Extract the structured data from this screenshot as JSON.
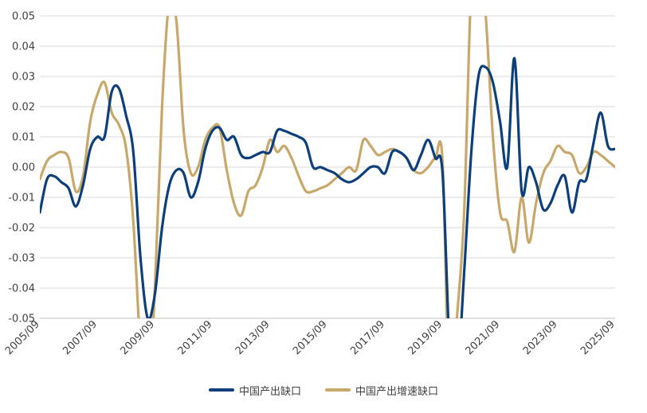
{
  "chart_data": {
    "type": "line",
    "title": "",
    "xlabel": "",
    "ylabel": "",
    "ylim": [
      -0.05,
      0.05
    ],
    "y_ticks": [
      "0.05",
      "0.04",
      "0.03",
      "0.02",
      "0.01",
      "0.00",
      "-0.01",
      "-0.02",
      "-0.03",
      "-0.04",
      "-0.05"
    ],
    "x_ticks": [
      "2005/09",
      "2007/09",
      "2009/09",
      "2011/09",
      "2013/09",
      "2015/09",
      "2017/09",
      "2019/09",
      "2021/09",
      "2023/09",
      "2025/09"
    ],
    "x_start": "2005/09",
    "x_end": "2025/09",
    "grid": true,
    "legend_position": "bottom",
    "series": [
      {
        "name": "中国产出缺口",
        "color": "#0d3f7a",
        "points": [
          [
            "2005/09",
            -0.015
          ],
          [
            "2005/12",
            -0.004
          ],
          [
            "2006/03",
            -0.003
          ],
          [
            "2006/06",
            -0.005
          ],
          [
            "2006/09",
            -0.007
          ],
          [
            "2006/12",
            -0.013
          ],
          [
            "2007/03",
            -0.006
          ],
          [
            "2007/06",
            0.006
          ],
          [
            "2007/09",
            0.01
          ],
          [
            "2007/12",
            0.01
          ],
          [
            "2008/03",
            0.025
          ],
          [
            "2008/06",
            0.026
          ],
          [
            "2008/09",
            0.017
          ],
          [
            "2008/12",
            0.005
          ],
          [
            "2009/03",
            -0.03
          ],
          [
            "2009/06",
            -0.05
          ],
          [
            "2009/09",
            -0.042
          ],
          [
            "2009/12",
            -0.02
          ],
          [
            "2010/03",
            -0.006
          ],
          [
            "2010/06",
            -0.001
          ],
          [
            "2010/09",
            -0.002
          ],
          [
            "2010/12",
            -0.01
          ],
          [
            "2011/03",
            -0.005
          ],
          [
            "2011/06",
            0.006
          ],
          [
            "2011/09",
            0.012
          ],
          [
            "2011/12",
            0.013
          ],
          [
            "2012/03",
            0.009
          ],
          [
            "2012/06",
            0.01
          ],
          [
            "2012/09",
            0.004
          ],
          [
            "2012/12",
            0.003
          ],
          [
            "2013/03",
            0.004
          ],
          [
            "2013/06",
            0.005
          ],
          [
            "2013/09",
            0.005
          ],
          [
            "2013/12",
            0.012
          ],
          [
            "2014/03",
            0.012
          ],
          [
            "2014/06",
            0.011
          ],
          [
            "2014/09",
            0.01
          ],
          [
            "2014/12",
            0.008
          ],
          [
            "2015/03",
            0.0
          ],
          [
            "2015/06",
            0.0
          ],
          [
            "2015/09",
            -0.001
          ],
          [
            "2015/12",
            -0.002
          ],
          [
            "2016/03",
            -0.004
          ],
          [
            "2016/06",
            -0.005
          ],
          [
            "2016/09",
            -0.004
          ],
          [
            "2016/12",
            -0.002
          ],
          [
            "2017/03",
            0.0
          ],
          [
            "2017/06",
            0.0
          ],
          [
            "2017/09",
            -0.002
          ],
          [
            "2017/12",
            0.005
          ],
          [
            "2018/03",
            0.005
          ],
          [
            "2018/06",
            0.003
          ],
          [
            "2018/09",
            -0.001
          ],
          [
            "2018/12",
            0.004
          ],
          [
            "2019/03",
            0.009
          ],
          [
            "2019/06",
            0.003
          ],
          [
            "2019/09",
            -0.002
          ],
          [
            "2019/12",
            -0.06
          ],
          [
            "2020/03",
            -0.07
          ],
          [
            "2020/06",
            -0.035
          ],
          [
            "2020/09",
            0.005
          ],
          [
            "2020/12",
            0.03
          ],
          [
            "2021/03",
            0.033
          ],
          [
            "2021/06",
            0.028
          ],
          [
            "2021/09",
            0.015
          ],
          [
            "2021/12",
            0.0
          ],
          [
            "2022/03",
            0.036
          ],
          [
            "2022/06",
            -0.008
          ],
          [
            "2022/09",
            0.0
          ],
          [
            "2022/12",
            -0.005
          ],
          [
            "2023/03",
            -0.014
          ],
          [
            "2023/06",
            -0.012
          ],
          [
            "2023/09",
            -0.006
          ],
          [
            "2023/12",
            -0.003
          ],
          [
            "2024/03",
            -0.015
          ],
          [
            "2024/06",
            -0.005
          ],
          [
            "2024/09",
            -0.004
          ],
          [
            "2024/12",
            0.008
          ],
          [
            "2025/03",
            0.018
          ],
          [
            "2025/06",
            0.007
          ],
          [
            "2025/09",
            0.006
          ]
        ]
      },
      {
        "name": "中国产出增速缺口",
        "color": "#c8a86a",
        "points": [
          [
            "2005/09",
            -0.004
          ],
          [
            "2005/12",
            0.002
          ],
          [
            "2006/03",
            0.004
          ],
          [
            "2006/06",
            0.005
          ],
          [
            "2006/09",
            0.003
          ],
          [
            "2006/12",
            -0.008
          ],
          [
            "2007/03",
            -0.003
          ],
          [
            "2007/06",
            0.015
          ],
          [
            "2007/09",
            0.024
          ],
          [
            "2007/12",
            0.028
          ],
          [
            "2008/03",
            0.018
          ],
          [
            "2008/06",
            0.014
          ],
          [
            "2008/09",
            0.006
          ],
          [
            "2008/12",
            -0.018
          ],
          [
            "2009/03",
            -0.06
          ],
          [
            "2009/06",
            -0.08
          ],
          [
            "2009/09",
            -0.04
          ],
          [
            "2009/12",
            0.02
          ],
          [
            "2010/03",
            0.055
          ],
          [
            "2010/06",
            0.048
          ],
          [
            "2010/09",
            0.012
          ],
          [
            "2010/12",
            -0.002
          ],
          [
            "2011/03",
            0.0
          ],
          [
            "2011/06",
            0.009
          ],
          [
            "2011/09",
            0.013
          ],
          [
            "2011/12",
            0.013
          ],
          [
            "2012/03",
            -0.001
          ],
          [
            "2012/06",
            -0.012
          ],
          [
            "2012/09",
            -0.016
          ],
          [
            "2012/12",
            -0.008
          ],
          [
            "2013/03",
            -0.006
          ],
          [
            "2013/06",
            0.0
          ],
          [
            "2013/09",
            0.009
          ],
          [
            "2013/12",
            0.005
          ],
          [
            "2014/03",
            0.007
          ],
          [
            "2014/06",
            0.003
          ],
          [
            "2014/09",
            -0.003
          ],
          [
            "2014/12",
            -0.008
          ],
          [
            "2015/03",
            -0.008
          ],
          [
            "2015/06",
            -0.007
          ],
          [
            "2015/09",
            -0.006
          ],
          [
            "2015/12",
            -0.004
          ],
          [
            "2016/03",
            -0.002
          ],
          [
            "2016/06",
            0.0
          ],
          [
            "2016/09",
            -0.001
          ],
          [
            "2016/12",
            0.009
          ],
          [
            "2017/03",
            0.007
          ],
          [
            "2017/06",
            0.004
          ],
          [
            "2017/09",
            0.005
          ],
          [
            "2017/12",
            0.006
          ],
          [
            "2018/03",
            0.005
          ],
          [
            "2018/06",
            0.003
          ],
          [
            "2018/09",
            -0.001
          ],
          [
            "2018/12",
            -0.002
          ],
          [
            "2019/03",
            0.0
          ],
          [
            "2019/06",
            0.003
          ],
          [
            "2019/09",
            0.002
          ],
          [
            "2019/12",
            -0.08
          ],
          [
            "2020/03",
            -0.05
          ],
          [
            "2020/06",
            -0.015
          ],
          [
            "2020/09",
            0.06
          ],
          [
            "2020/12",
            0.07
          ],
          [
            "2021/03",
            0.05
          ],
          [
            "2021/06",
            0.01
          ],
          [
            "2021/09",
            -0.015
          ],
          [
            "2021/12",
            -0.018
          ],
          [
            "2022/03",
            -0.028
          ],
          [
            "2022/06",
            -0.01
          ],
          [
            "2022/09",
            -0.025
          ],
          [
            "2022/12",
            -0.012
          ],
          [
            "2023/03",
            -0.002
          ],
          [
            "2023/06",
            0.002
          ],
          [
            "2023/09",
            0.007
          ],
          [
            "2023/12",
            0.005
          ],
          [
            "2024/03",
            0.004
          ],
          [
            "2024/06",
            -0.002
          ],
          [
            "2024/09",
            0.0
          ],
          [
            "2024/12",
            0.005
          ],
          [
            "2025/03",
            0.004
          ],
          [
            "2025/06",
            0.002
          ],
          [
            "2025/09",
            0.0
          ]
        ]
      }
    ]
  }
}
